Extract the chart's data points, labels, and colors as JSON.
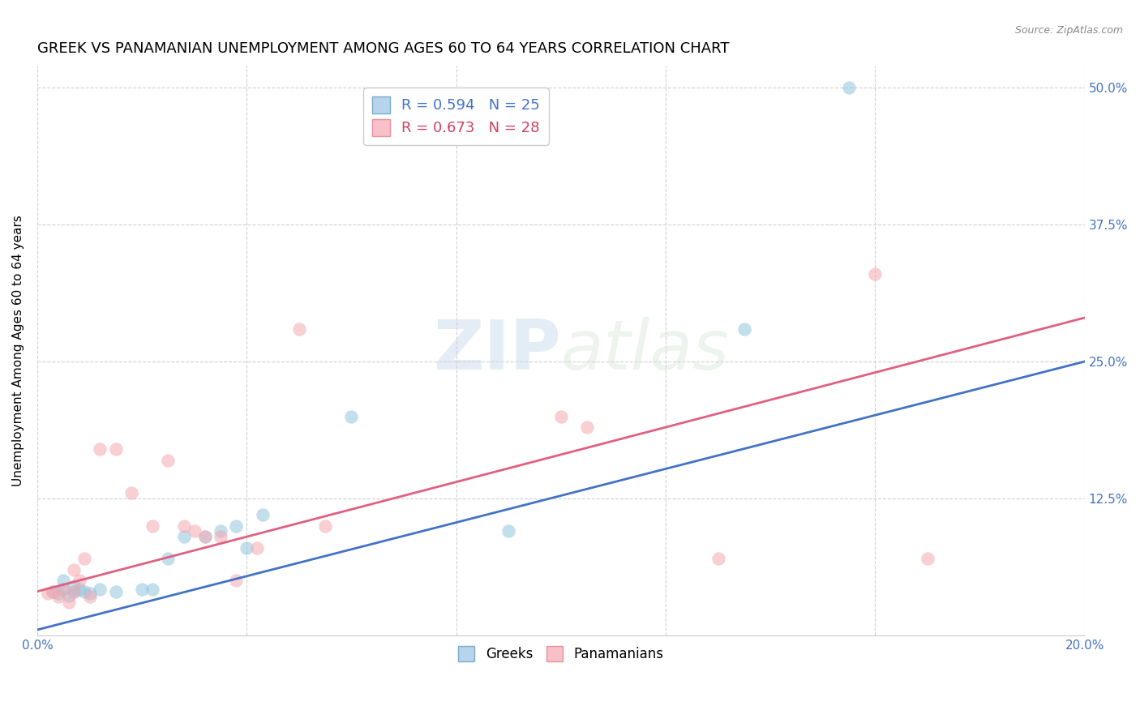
{
  "title": "GREEK VS PANAMANIAN UNEMPLOYMENT AMONG AGES 60 TO 64 YEARS CORRELATION CHART",
  "source": "Source: ZipAtlas.com",
  "ylabel": "Unemployment Among Ages 60 to 64 years",
  "xmin": 0.0,
  "xmax": 0.2,
  "ymin": 0.0,
  "ymax": 0.52,
  "xticks": [
    0.0,
    0.04,
    0.08,
    0.12,
    0.16,
    0.2
  ],
  "xticklabels": [
    "0.0%",
    "",
    "",
    "",
    "",
    "20.0%"
  ],
  "ytick_labels_right": [
    "",
    "12.5%",
    "25.0%",
    "37.5%",
    "50.0%"
  ],
  "ytick_vals": [
    0.0,
    0.125,
    0.25,
    0.375,
    0.5
  ],
  "greek_scatter_x": [
    0.003,
    0.004,
    0.005,
    0.005,
    0.006,
    0.007,
    0.007,
    0.008,
    0.009,
    0.01,
    0.012,
    0.015,
    0.02,
    0.022,
    0.025,
    0.028,
    0.032,
    0.035,
    0.038,
    0.04,
    0.043,
    0.06,
    0.09,
    0.135,
    0.155
  ],
  "greek_scatter_y": [
    0.04,
    0.038,
    0.042,
    0.05,
    0.036,
    0.04,
    0.045,
    0.042,
    0.04,
    0.038,
    0.042,
    0.04,
    0.042,
    0.042,
    0.07,
    0.09,
    0.09,
    0.095,
    0.1,
    0.08,
    0.11,
    0.2,
    0.095,
    0.28,
    0.5
  ],
  "panamanian_scatter_x": [
    0.002,
    0.003,
    0.004,
    0.005,
    0.006,
    0.007,
    0.007,
    0.008,
    0.009,
    0.01,
    0.012,
    0.015,
    0.018,
    0.022,
    0.025,
    0.028,
    0.03,
    0.032,
    0.035,
    0.038,
    0.042,
    0.05,
    0.055,
    0.1,
    0.105,
    0.13,
    0.16,
    0.17
  ],
  "panamanian_scatter_y": [
    0.038,
    0.04,
    0.035,
    0.042,
    0.03,
    0.04,
    0.06,
    0.05,
    0.07,
    0.035,
    0.17,
    0.17,
    0.13,
    0.1,
    0.16,
    0.1,
    0.095,
    0.09,
    0.09,
    0.05,
    0.08,
    0.28,
    0.1,
    0.2,
    0.19,
    0.07,
    0.33,
    0.07
  ],
  "greek_line_x": [
    0.0,
    0.2
  ],
  "greek_line_y": [
    0.005,
    0.25
  ],
  "panamanian_line_x": [
    0.0,
    0.2
  ],
  "panamanian_line_y": [
    0.04,
    0.29
  ],
  "greek_color": "#92c5de",
  "panamanian_color": "#f4a8b0",
  "greek_line_color": "#4472c4",
  "panamanian_line_color": "#e06080",
  "watermark_zip": "ZIP",
  "watermark_atlas": "atlas",
  "background_color": "#ffffff",
  "grid_color": "#d0d0d0",
  "marker_size": 130,
  "marker_alpha": 0.55,
  "title_fontsize": 13,
  "axis_label_fontsize": 11,
  "tick_fontsize": 11,
  "legend_R1": "R = 0.594",
  "legend_N1": "N = 25",
  "legend_R2": "R = 0.673",
  "legend_N2": "N = 28"
}
